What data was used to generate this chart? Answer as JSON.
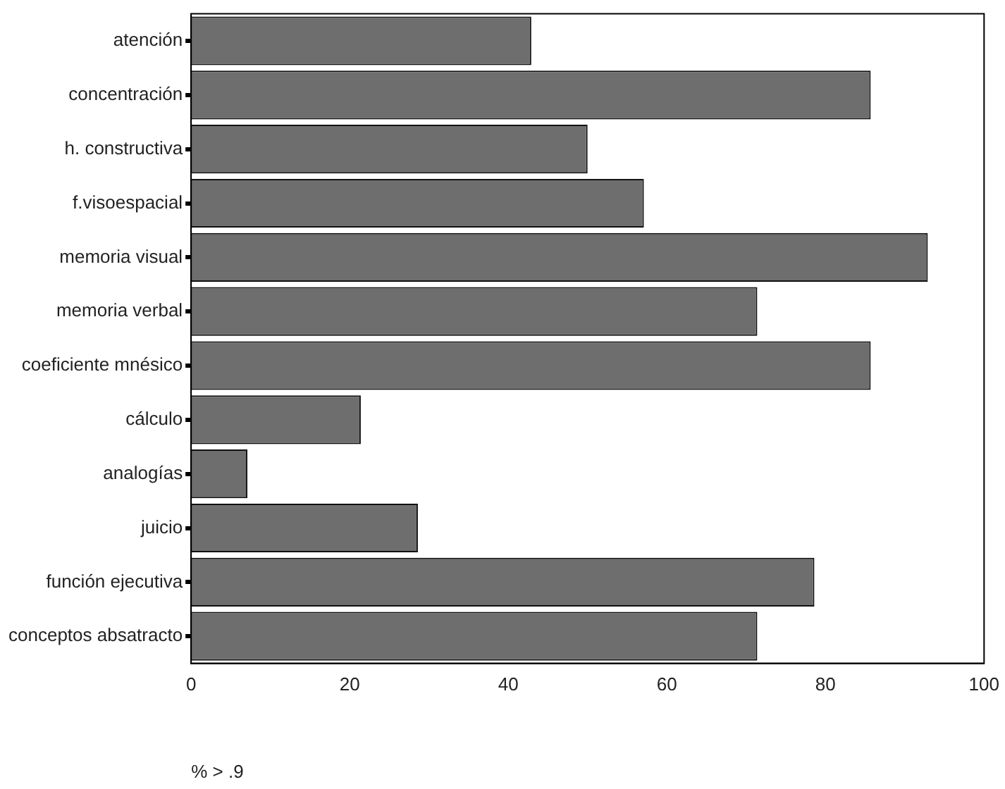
{
  "chart_data": {
    "type": "bar",
    "orientation": "horizontal",
    "xlabel": "% > .9",
    "categories": [
      "atención",
      "concentración",
      "h. constructiva",
      "f.visoespacial",
      "memoria visual",
      "memoria verbal",
      "coeficiente mnésico",
      "cálculo",
      "analogías",
      "juicio",
      "función ejecutiva",
      "conceptos absatracto"
    ],
    "values": [
      42.9,
      85.7,
      50,
      57.1,
      92.9,
      71.4,
      85.7,
      21.4,
      7.1,
      28.6,
      78.6,
      71.4
    ],
    "color": "#6e6e6e",
    "xlim": [
      0,
      100
    ],
    "xticks": [
      0,
      20,
      40,
      60,
      80,
      100
    ],
    "grid": false,
    "legend": false
  }
}
